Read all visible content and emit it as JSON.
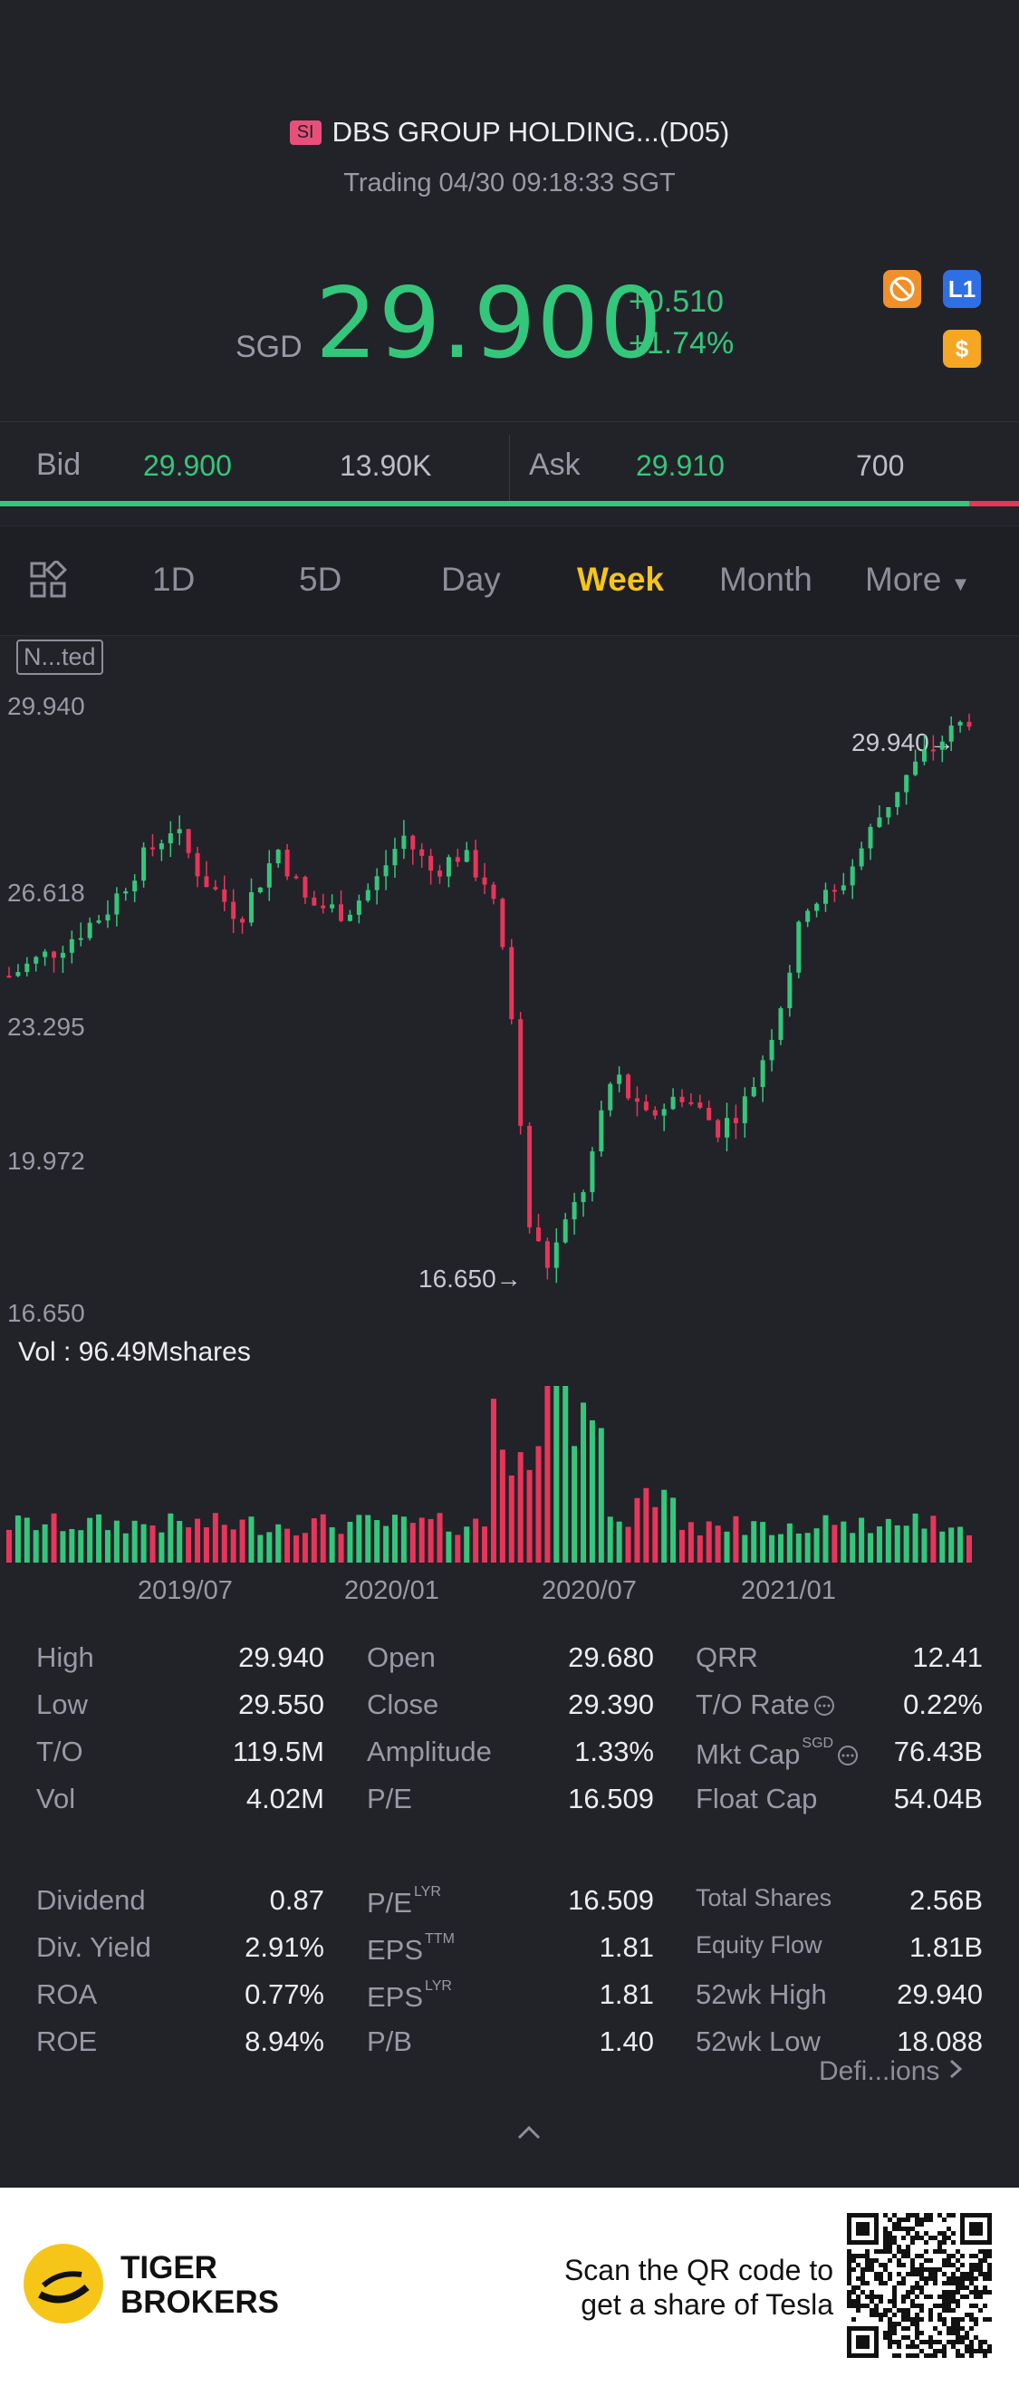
{
  "header": {
    "exchange_badge": "SI",
    "title": "DBS GROUP HOLDING...(D05)",
    "status": "Trading 04/30 09:18:33 SGT",
    "currency": "SGD",
    "price": "29.900",
    "change": "+0.510",
    "change_pct": "+1.74%",
    "icons": [
      "no-short-icon",
      "level-1-icon",
      "dollar-icon"
    ],
    "icon_l1_text": "L1",
    "icon_dollar_text": "$"
  },
  "quote": {
    "bid_label": "Bid",
    "bid_price": "29.900",
    "bid_size": "13.90K",
    "ask_label": "Ask",
    "ask_price": "29.910",
    "ask_size": "700"
  },
  "tabs": {
    "items": [
      "1D",
      "5D",
      "Day",
      "Week",
      "Month",
      "More"
    ],
    "active": "Week",
    "more_arrow": "▼"
  },
  "chart_badge": "N...ted",
  "chart_data": {
    "type": "candlestick",
    "interval": "Week",
    "y_ticks": [
      "29.940",
      "26.618",
      "23.295",
      "19.972",
      "16.650"
    ],
    "ylim": [
      16.65,
      29.94
    ],
    "high_marker": "29.940→",
    "low_marker": "16.650→",
    "x_ticks": [
      "2019/07",
      "2020/01",
      "2020/07",
      "2021/01"
    ],
    "volume_label": "Vol  : 96.49Mshares"
  },
  "stats": {
    "col1": [
      {
        "label": "High",
        "value": "29.940"
      },
      {
        "label": "Low",
        "value": "29.550"
      },
      {
        "label": "T/O",
        "value": "119.5M"
      },
      {
        "label": "Vol",
        "value": "4.02M"
      },
      {
        "label": "Dividend",
        "value": "0.87"
      },
      {
        "label": "Div. Yield",
        "value": "2.91%"
      },
      {
        "label": "ROA",
        "value": "0.77%"
      },
      {
        "label": "ROE",
        "value": "8.94%"
      }
    ],
    "col2": [
      {
        "label": "Open",
        "value": "29.680",
        "sup": ""
      },
      {
        "label": "Close",
        "value": "29.390",
        "sup": ""
      },
      {
        "label": "Amplitude",
        "value": "1.33%",
        "sup": ""
      },
      {
        "label": "P/E",
        "value": "16.509",
        "sup": ""
      },
      {
        "label": "P/E",
        "value": "16.509",
        "sup": "LYR"
      },
      {
        "label": "EPS",
        "value": "1.81",
        "sup": "TTM"
      },
      {
        "label": "EPS",
        "value": "1.81",
        "sup": "LYR"
      },
      {
        "label": "P/B",
        "value": "1.40",
        "sup": ""
      }
    ],
    "col3": [
      {
        "label": "QRR",
        "value": "12.41",
        "sup": ""
      },
      {
        "label": "T/O Rate",
        "value": "0.22%",
        "sup": ""
      },
      {
        "label": "Mkt Cap",
        "value": "76.43B",
        "sup": "SGD"
      },
      {
        "label": "Float Cap",
        "value": "54.04B",
        "sup": ""
      },
      {
        "label": "Total Shares",
        "value": "2.56B",
        "sup": ""
      },
      {
        "label": "Equity Flow",
        "value": "1.81B",
        "sup": ""
      },
      {
        "label": "52wk High",
        "value": "29.940",
        "sup": ""
      },
      {
        "label": "52wk Low",
        "value": "18.088",
        "sup": ""
      }
    ],
    "definitions_link": "Defi...ions"
  },
  "footer": {
    "brand_line1": "TIGER",
    "brand_line2": "BROKERS",
    "scan_line1": "Scan the QR code to",
    "scan_line2": "get a share of Tesla"
  },
  "colors": {
    "up": "#34c77b",
    "down": "#e8355a",
    "accent": "#f5c518",
    "background": "#222229"
  }
}
